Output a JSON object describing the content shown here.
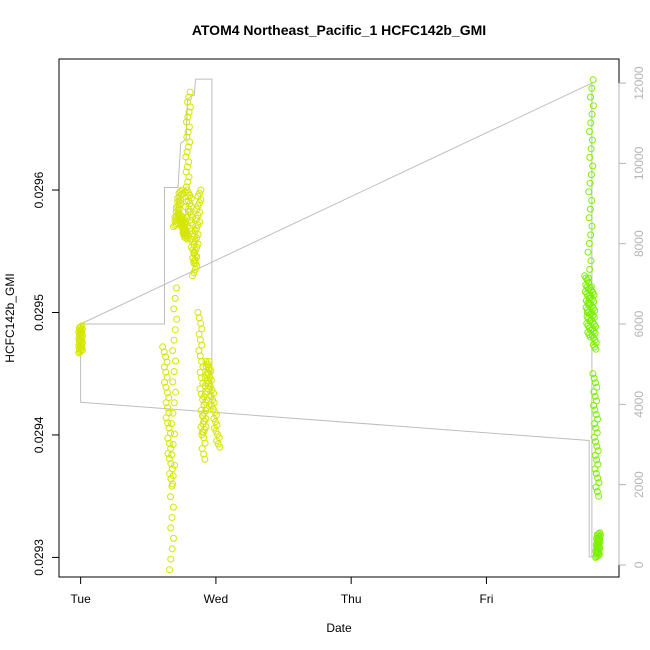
{
  "chart_data": {
    "type": "scatter",
    "title": "ATOM4 Northeast_Pacific_1 HCFC142b_GMI",
    "xlabel": "Date",
    "ylabel": "HCFC142b_GMI",
    "x_ticks": [
      "Tue",
      "Wed",
      "Thu",
      "Fri"
    ],
    "y_ticks": [
      "0.0293",
      "0.0294",
      "0.0295",
      "0.0296"
    ],
    "y2_ticks": [
      "0",
      "2000",
      "4000",
      "6000",
      "8000",
      "10000",
      "12000"
    ],
    "xlim_days": [
      -0.16,
      3.98
    ],
    "ylim": [
      0.029284,
      0.029707
    ],
    "y2lim": [
      -300,
      12600
    ],
    "colors": {
      "early": "#d4e600",
      "late": "#7cf000",
      "altitude_line": "#bebebe",
      "axis": "#000000",
      "right_axis": "#b4b4b4"
    },
    "altitude_profile": [
      [
        0.0,
        6000
      ],
      [
        0.0,
        4050
      ],
      [
        3.76,
        3100
      ],
      [
        3.76,
        200
      ],
      [
        3.78,
        200
      ],
      [
        3.78,
        12000
      ],
      [
        0.0,
        6000
      ],
      [
        0.0,
        6000
      ],
      [
        0.62,
        6000
      ],
      [
        0.62,
        7000
      ],
      [
        0.62,
        9400
      ],
      [
        0.72,
        9400
      ],
      [
        0.74,
        10500
      ],
      [
        0.78,
        10600
      ],
      [
        0.79,
        11600
      ],
      [
        0.83,
        11700
      ],
      [
        0.84,
        11700
      ],
      [
        0.85,
        12100
      ],
      [
        0.88,
        12100
      ],
      [
        0.97,
        12100
      ],
      [
        0.97,
        3900
      ]
    ],
    "series": [
      {
        "segments": [
          {
            "t": [
              0.0,
              0.0
            ],
            "y": [
              0.029467,
              0.029489
            ]
          },
          {
            "t": [
              0.62,
              0.67
            ],
            "y": [
              0.029472,
              0.02936
            ]
          },
          {
            "t": [
              0.67,
              0.7
            ],
            "y": [
              0.02929,
              0.02952
            ]
          },
          {
            "t": [
              0.7,
              0.74
            ],
            "y": [
              0.02957,
              0.0296
            ]
          },
          {
            "t": [
              0.74,
              0.78
            ],
            "y": [
              0.02958,
              0.02956
            ]
          },
          {
            "t": [
              0.78,
              0.8
            ],
            "y": [
              0.02957,
              0.02968
            ]
          },
          {
            "t": [
              0.8,
              0.84
            ],
            "y": [
              0.0296,
              0.02954
            ]
          },
          {
            "t": [
              0.84,
              0.88
            ],
            "y": [
              0.02953,
              0.0296
            ]
          },
          {
            "t": [
              0.88,
              0.91
            ],
            "y": [
              0.0295,
              0.02938
            ]
          },
          {
            "t": [
              0.91,
              0.94
            ],
            "y": [
              0.0294,
              0.02946
            ]
          },
          {
            "t": [
              0.94,
              1.02
            ],
            "y": [
              0.02946,
              0.02939
            ]
          }
        ]
      },
      {
        "segments": [
          {
            "t": [
              3.74,
              3.76
            ],
            "y": [
              0.02953,
              0.02948
            ]
          },
          {
            "t": [
              3.76,
              3.78
            ],
            "y": [
              0.0295,
              0.02969
            ]
          },
          {
            "t": [
              3.78,
              3.8
            ],
            "y": [
              0.02952,
              0.02947
            ]
          },
          {
            "t": [
              3.8,
              3.82
            ],
            "y": [
              0.02945,
              0.02935
            ]
          },
          {
            "t": [
              3.82,
              3.83
            ],
            "y": [
              0.0293,
              0.02932
            ]
          }
        ]
      }
    ]
  }
}
